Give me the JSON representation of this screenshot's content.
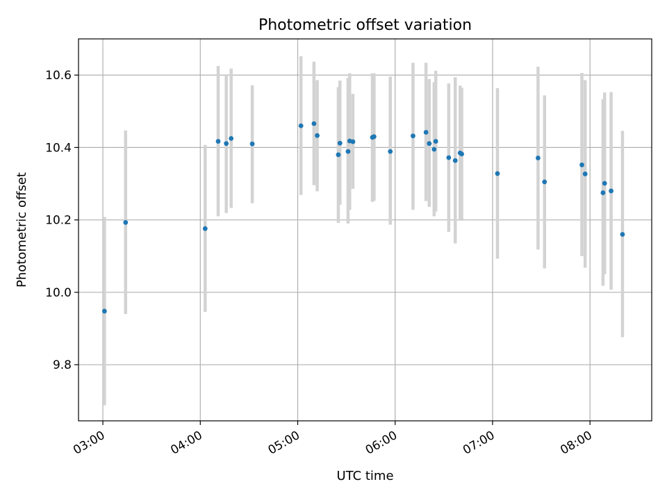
{
  "chart_data": {
    "type": "scatter",
    "title": "Photometric offset variation",
    "xlabel": "UTC time",
    "ylabel": "Photometric offset",
    "x_unit": "UTC time (HH:MM)",
    "xlim": [
      "02:45",
      "08:38"
    ],
    "ylim": [
      9.645,
      10.7
    ],
    "grid": true,
    "x_ticks": [
      "03:00",
      "04:00",
      "05:00",
      "06:00",
      "07:00",
      "08:00"
    ],
    "y_ticks": [
      9.8,
      10.0,
      10.2,
      10.4,
      10.6
    ],
    "y_tick_labels": [
      "9.8",
      "10.0",
      "10.2",
      "10.4",
      "10.6"
    ],
    "points": [
      {
        "x": "03:01",
        "y": 9.948,
        "yerr_low": 9.688,
        "yerr_high": 10.208
      },
      {
        "x": "03:14",
        "y": 10.193,
        "yerr_low": 9.94,
        "yerr_high": 10.447
      },
      {
        "x": "04:03",
        "y": 10.176,
        "yerr_low": 9.946,
        "yerr_high": 10.407
      },
      {
        "x": "04:11",
        "y": 10.417,
        "yerr_low": 10.21,
        "yerr_high": 10.625
      },
      {
        "x": "04:16",
        "y": 10.411,
        "yerr_low": 10.219,
        "yerr_high": 10.6
      },
      {
        "x": "04:19",
        "y": 10.425,
        "yerr_low": 10.233,
        "yerr_high": 10.618
      },
      {
        "x": "04:32",
        "y": 10.41,
        "yerr_low": 10.246,
        "yerr_high": 10.572
      },
      {
        "x": "05:02",
        "y": 10.46,
        "yerr_low": 10.269,
        "yerr_high": 10.652
      },
      {
        "x": "05:10",
        "y": 10.466,
        "yerr_low": 10.296,
        "yerr_high": 10.637
      },
      {
        "x": "05:12",
        "y": 10.433,
        "yerr_low": 10.279,
        "yerr_high": 10.586
      },
      {
        "x": "05:25",
        "y": 10.38,
        "yerr_low": 10.192,
        "yerr_high": 10.567
      },
      {
        "x": "05:26",
        "y": 10.412,
        "yerr_low": 10.242,
        "yerr_high": 10.585
      },
      {
        "x": "05:31",
        "y": 10.389,
        "yerr_low": 10.19,
        "yerr_high": 10.592
      },
      {
        "x": "05:32",
        "y": 10.418,
        "yerr_low": 10.228,
        "yerr_high": 10.605
      },
      {
        "x": "05:34",
        "y": 10.416,
        "yerr_low": 10.286,
        "yerr_high": 10.548
      },
      {
        "x": "05:46",
        "y": 10.428,
        "yerr_low": 10.25,
        "yerr_high": 10.605
      },
      {
        "x": "05:47",
        "y": 10.43,
        "yerr_low": 10.253,
        "yerr_high": 10.605
      },
      {
        "x": "05:57",
        "y": 10.389,
        "yerr_low": 10.187,
        "yerr_high": 10.596
      },
      {
        "x": "06:11",
        "y": 10.432,
        "yerr_low": 10.228,
        "yerr_high": 10.634
      },
      {
        "x": "06:19",
        "y": 10.442,
        "yerr_low": 10.252,
        "yerr_high": 10.634
      },
      {
        "x": "06:21",
        "y": 10.411,
        "yerr_low": 10.236,
        "yerr_high": 10.589
      },
      {
        "x": "06:24",
        "y": 10.395,
        "yerr_low": 10.21,
        "yerr_high": 10.58
      },
      {
        "x": "06:25",
        "y": 10.417,
        "yerr_low": 10.223,
        "yerr_high": 10.612
      },
      {
        "x": "06:33",
        "y": 10.372,
        "yerr_low": 10.167,
        "yerr_high": 10.577
      },
      {
        "x": "06:37",
        "y": 10.364,
        "yerr_low": 10.135,
        "yerr_high": 10.594
      },
      {
        "x": "06:40",
        "y": 10.385,
        "yerr_low": 10.198,
        "yerr_high": 10.571
      },
      {
        "x": "06:41",
        "y": 10.382,
        "yerr_low": 10.201,
        "yerr_high": 10.565
      },
      {
        "x": "07:03",
        "y": 10.328,
        "yerr_low": 10.093,
        "yerr_high": 10.564
      },
      {
        "x": "07:28",
        "y": 10.371,
        "yerr_low": 10.118,
        "yerr_high": 10.623
      },
      {
        "x": "07:32",
        "y": 10.305,
        "yerr_low": 10.066,
        "yerr_high": 10.544
      },
      {
        "x": "07:55",
        "y": 10.352,
        "yerr_low": 10.1,
        "yerr_high": 10.606
      },
      {
        "x": "07:57",
        "y": 10.327,
        "yerr_low": 10.068,
        "yerr_high": 10.586
      },
      {
        "x": "08:08",
        "y": 10.275,
        "yerr_low": 10.018,
        "yerr_high": 10.533
      },
      {
        "x": "08:09",
        "y": 10.301,
        "yerr_low": 10.05,
        "yerr_high": 10.552
      },
      {
        "x": "08:13",
        "y": 10.28,
        "yerr_low": 10.007,
        "yerr_high": 10.553
      },
      {
        "x": "08:20",
        "y": 10.16,
        "yerr_low": 9.876,
        "yerr_high": 10.446
      }
    ],
    "colors": {
      "marker": "#1f77b4",
      "errorbar": "#d3d3d3",
      "grid": "#b0b0b0",
      "axes": "#000000"
    }
  }
}
